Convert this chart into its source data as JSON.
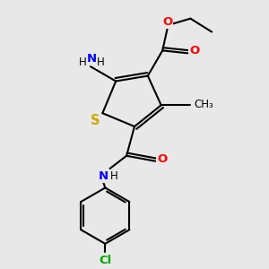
{
  "bg_color": "#e8e8e8",
  "atom_colors": {
    "C": "#000000",
    "N": "#0000ff",
    "O": "#ff0000",
    "S": "#ccaa00",
    "Cl": "#00aa00",
    "H": "#000000"
  },
  "bond_color": "#000000",
  "figsize": [
    3.0,
    3.0
  ],
  "dpi": 100,
  "xlim": [
    0,
    10
  ],
  "ylim": [
    0,
    10
  ]
}
